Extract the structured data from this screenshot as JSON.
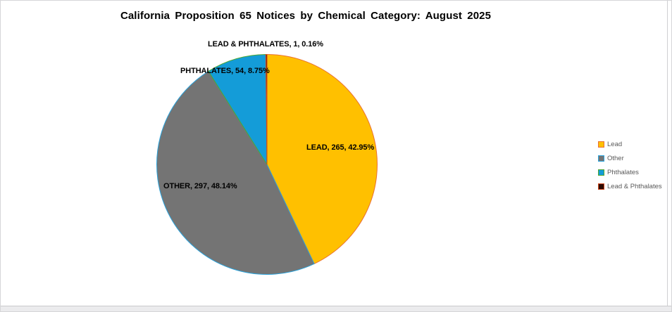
{
  "chart_data": {
    "type": "pie",
    "title": "California Proposition 65 Notices by Chemical Category: August 2025",
    "legend_position": "right",
    "start_angle_deg": 0,
    "direction": "clockwise",
    "slices": [
      {
        "label": "Lead",
        "value": 265,
        "pct": 42.95,
        "callout": "LEAD, 265, 42.95%",
        "color": "#FFC000",
        "border": "#E97132"
      },
      {
        "label": "Other",
        "value": 297,
        "pct": 48.14,
        "callout": "OTHER, 297, 48.14%",
        "color": "#747474",
        "border": "#2BA3DC"
      },
      {
        "label": "Phthalates",
        "value": 54,
        "pct": 8.75,
        "callout": "PHTHALATES, 54, 8.75%",
        "color": "#149CD8",
        "border": "#4EA72E"
      },
      {
        "label": "Lead & Phthalates",
        "value": 1,
        "pct": 0.16,
        "callout": "LEAD & PHTHALATES, 1, 0.16%",
        "color": "#2E0B03",
        "border": "#D1491C"
      }
    ]
  }
}
